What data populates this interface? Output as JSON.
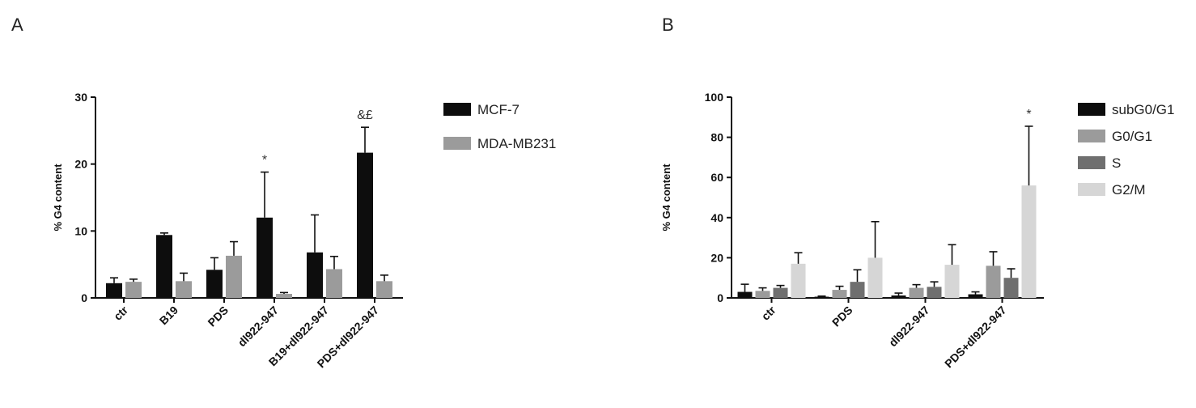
{
  "panels": {
    "a_label": "A",
    "b_label": "B"
  },
  "colors": {
    "black": "#0d0d0d",
    "gray": "#9b9b9b",
    "dark_gray": "#6f6f6f",
    "light_gray": "#d6d6d6"
  },
  "chart_data": [
    {
      "type": "bar",
      "panel": "A",
      "ylabel": "% G4 content",
      "ylim": [
        0,
        30
      ],
      "yticks": [
        0,
        10,
        20,
        30
      ],
      "categories": [
        "ctr",
        "B19",
        "PDS",
        "dl922-947",
        "B19+dl922-947",
        "PDS+dl922-947"
      ],
      "series": [
        {
          "name": "MCF-7",
          "color": "#0d0d0d",
          "values": [
            2.2,
            9.4,
            4.2,
            12.0,
            6.8,
            21.7
          ],
          "errors": [
            0.8,
            0.3,
            1.8,
            6.8,
            5.6,
            3.8
          ]
        },
        {
          "name": "MDA-MB231",
          "color": "#9b9b9b",
          "values": [
            2.4,
            2.5,
            6.3,
            0.6,
            4.3,
            2.5
          ],
          "errors": [
            0.4,
            1.2,
            2.1,
            0.2,
            1.9,
            0.9
          ]
        }
      ],
      "annotations": [
        {
          "category": "dl922-947",
          "text": "*"
        },
        {
          "category": "PDS+dl922-947",
          "text": "&£"
        }
      ],
      "legend_position": "right"
    },
    {
      "type": "bar",
      "panel": "B",
      "ylabel": "% G4 content",
      "ylim": [
        0,
        100
      ],
      "yticks": [
        0,
        20,
        40,
        60,
        80,
        100
      ],
      "categories": [
        "ctr",
        "PDS",
        "dl922-947",
        "PDS+dl922-947"
      ],
      "series": [
        {
          "name": "subG0/G1",
          "color": "#0d0d0d",
          "values": [
            3.0,
            0.6,
            1.2,
            1.8
          ],
          "errors": [
            3.8,
            0.3,
            1.2,
            1.2
          ]
        },
        {
          "name": "G0/G1",
          "color": "#9b9b9b",
          "values": [
            3.5,
            4.0,
            5.0,
            16.0
          ],
          "errors": [
            1.5,
            1.8,
            1.6,
            7.0
          ]
        },
        {
          "name": "S",
          "color": "#6f6f6f",
          "values": [
            5.0,
            8.0,
            5.5,
            10.0
          ],
          "errors": [
            1.2,
            6.0,
            2.5,
            4.5
          ]
        },
        {
          "name": "G2/M",
          "color": "#d6d6d6",
          "values": [
            17.0,
            20.0,
            16.5,
            56.0
          ],
          "errors": [
            5.5,
            18.0,
            10.0,
            29.5
          ]
        }
      ],
      "annotations": [
        {
          "category": "PDS+dl922-947",
          "text": "*"
        }
      ],
      "legend_position": "right"
    }
  ]
}
